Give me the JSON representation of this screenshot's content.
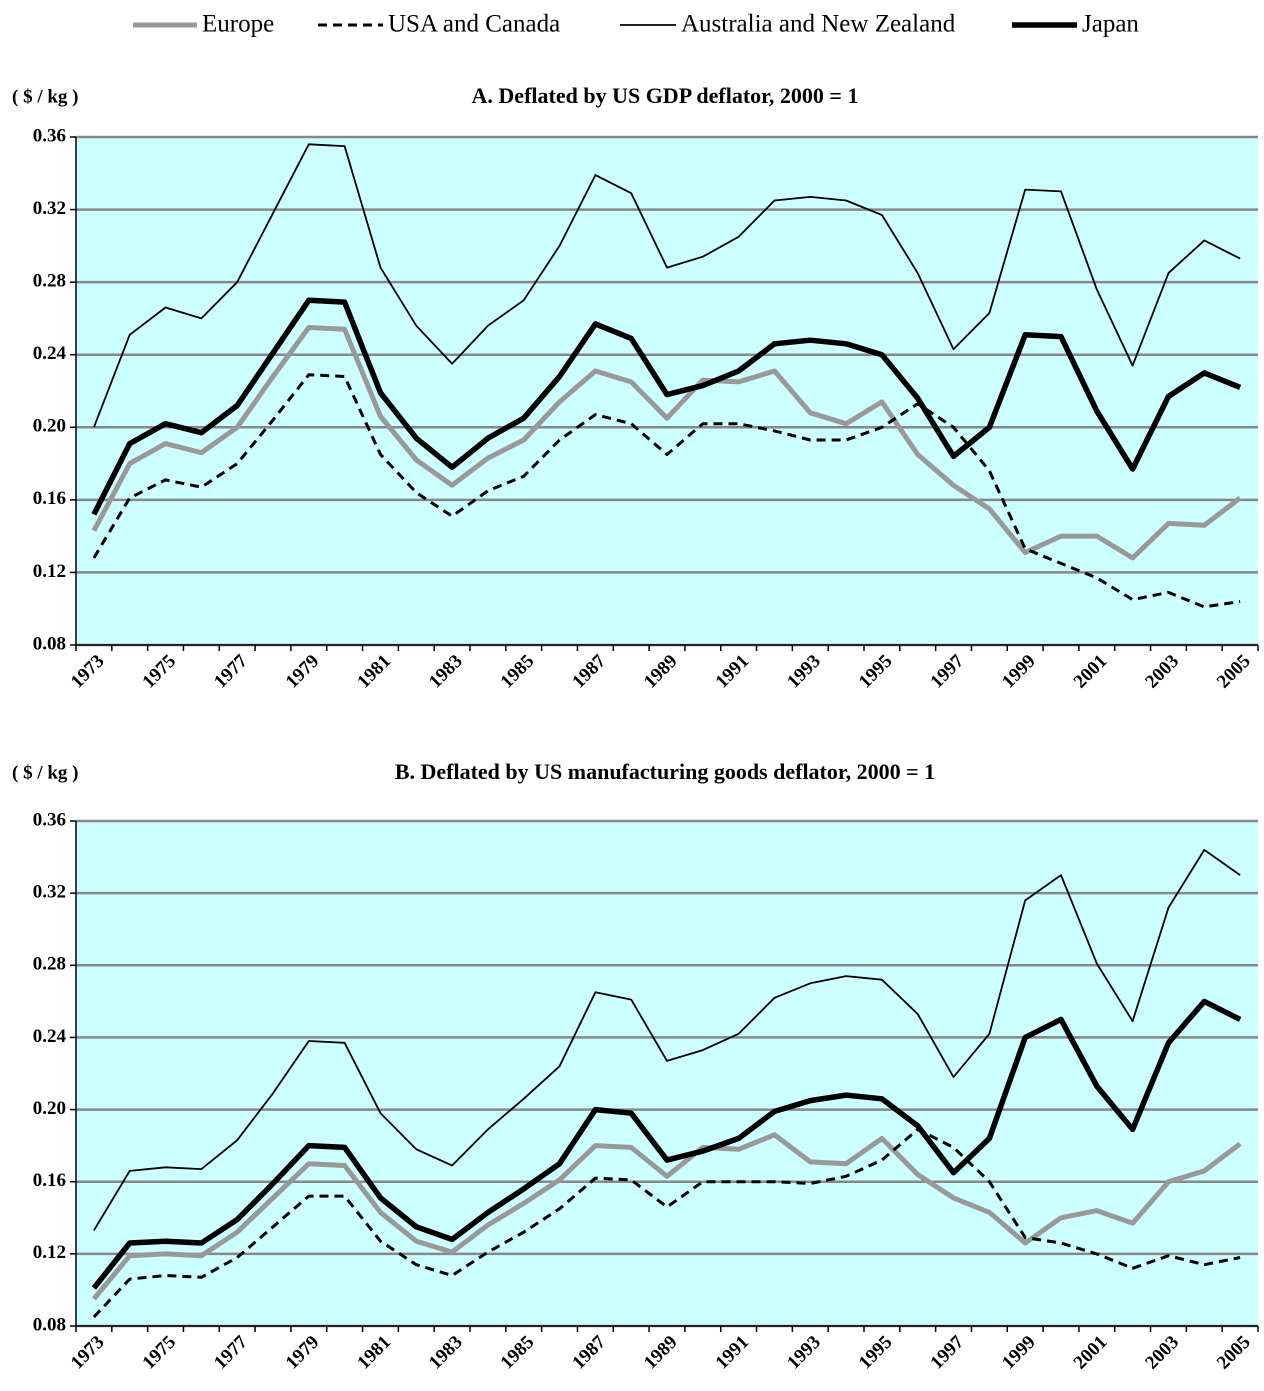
{
  "chart_data": [
    {
      "type": "line",
      "title": "A. Deflated by US GDP deflator, 2000 = 1",
      "ylabel": "( $ / kg )",
      "categories": [
        "1973",
        null,
        "1975",
        null,
        "1977",
        null,
        "1979",
        null,
        "1981",
        null,
        "1983",
        null,
        "1985",
        null,
        "1987",
        null,
        "1989",
        null,
        "1991",
        null,
        "1993",
        null,
        "1995",
        null,
        "1997",
        null,
        "1999",
        null,
        "2001",
        null,
        "2003",
        null,
        "2005"
      ],
      "ylim": [
        0.08,
        0.36
      ],
      "yticks": [
        0.08,
        0.12,
        0.16,
        {
          "value": 0.2,
          "label": "0.20"
        },
        0.24,
        0.28,
        0.32,
        0.36
      ],
      "grid": true,
      "background": "#ccffff",
      "series": [
        {
          "name": "Europe",
          "color": "#999999",
          "width": 5,
          "dash": "none",
          "values": [
            0.143,
            0.18,
            0.191,
            0.186,
            0.2,
            0.228,
            0.255,
            0.254,
            0.206,
            0.182,
            0.168,
            0.183,
            0.193,
            0.214,
            0.231,
            0.225,
            0.205,
            0.226,
            0.225,
            0.231,
            0.208,
            0.202,
            0.214,
            0.185,
            0.168,
            0.155,
            0.131,
            0.14,
            0.14,
            0.128,
            0.147,
            0.146,
            0.161
          ]
        },
        {
          "name": "USA and Canada",
          "color": "#000000",
          "width": 3,
          "dash": "9 6",
          "values": [
            0.128,
            0.161,
            0.171,
            0.167,
            0.18,
            0.204,
            0.229,
            0.228,
            0.185,
            0.164,
            0.151,
            0.165,
            0.173,
            0.193,
            0.207,
            0.202,
            0.185,
            0.202,
            0.202,
            0.198,
            0.193,
            0.193,
            0.2,
            0.213,
            0.2,
            0.176,
            0.133,
            0.125,
            0.117,
            0.105,
            0.109,
            0.101,
            0.104
          ]
        },
        {
          "name": "Australia and New Zealand",
          "color": "#000000",
          "width": 1.8,
          "dash": "none",
          "values": [
            0.2,
            0.251,
            0.266,
            0.26,
            0.28,
            0.318,
            0.356,
            0.355,
            0.288,
            0.256,
            0.235,
            0.256,
            0.27,
            0.3,
            0.339,
            0.329,
            0.288,
            0.294,
            0.305,
            0.325,
            0.327,
            0.325,
            0.317,
            0.285,
            0.243,
            0.263,
            0.331,
            0.33,
            0.276,
            0.234,
            0.285,
            0.303,
            0.293
          ]
        },
        {
          "name": "Japan",
          "color": "#000000",
          "width": 5.5,
          "dash": "none",
          "values": [
            0.152,
            0.191,
            0.202,
            0.197,
            0.212,
            0.241,
            0.27,
            0.269,
            0.219,
            0.194,
            0.178,
            0.194,
            0.205,
            0.228,
            0.257,
            0.249,
            0.218,
            0.223,
            0.231,
            0.246,
            0.248,
            0.246,
            0.24,
            0.216,
            0.184,
            0.2,
            0.251,
            0.25,
            0.209,
            0.177,
            0.217,
            0.23,
            0.222
          ]
        }
      ]
    },
    {
      "type": "line",
      "title": "B. Deflated by US manufacturing goods deflator, 2000 = 1",
      "ylabel": "( $ / kg )",
      "categories": [
        "1973",
        null,
        "1975",
        null,
        "1977",
        null,
        "1979",
        null,
        "1981",
        null,
        "1983",
        null,
        "1985",
        null,
        "1987",
        null,
        "1989",
        null,
        "1991",
        null,
        "1993",
        null,
        "1995",
        null,
        "1997",
        null,
        "1999",
        null,
        "2001",
        null,
        "2003",
        null,
        "2005"
      ],
      "ylim": [
        0.08,
        0.36
      ],
      "yticks": [
        0.08,
        0.12,
        0.16,
        {
          "value": 0.2,
          "label": "0.20"
        },
        0.24,
        0.28,
        0.32,
        0.36
      ],
      "grid": true,
      "background": "#ccffff",
      "series": [
        {
          "color": "#999999",
          "width": 5,
          "dash": "none",
          "values": [
            0.095,
            0.119,
            0.12,
            0.119,
            0.132,
            0.151,
            0.17,
            0.169,
            0.143,
            0.127,
            0.121,
            0.136,
            0.148,
            0.161,
            0.18,
            0.179,
            0.163,
            0.179,
            0.178,
            0.186,
            0.171,
            0.17,
            0.184,
            0.164,
            0.151,
            0.143,
            0.126,
            0.14,
            0.144,
            0.137,
            0.16,
            0.166,
            0.181
          ]
        },
        {
          "color": "#000000",
          "width": 3,
          "dash": "9 6",
          "values": [
            0.085,
            0.106,
            0.108,
            0.107,
            0.118,
            0.135,
            0.152,
            0.152,
            0.127,
            0.114,
            0.108,
            0.121,
            0.132,
            0.145,
            0.162,
            0.161,
            0.146,
            0.16,
            0.16,
            0.16,
            0.159,
            0.163,
            0.172,
            0.189,
            0.179,
            0.16,
            0.129,
            0.126,
            0.12,
            0.112,
            0.119,
            0.114,
            0.118
          ]
        },
        {
          "color": "#000000",
          "width": 1.8,
          "dash": "none",
          "values": [
            0.133,
            0.166,
            0.168,
            0.167,
            0.183,
            0.209,
            0.238,
            0.237,
            0.198,
            0.178,
            0.169,
            0.189,
            0.206,
            0.224,
            0.265,
            0.261,
            0.227,
            0.233,
            0.242,
            0.262,
            0.27,
            0.274,
            0.272,
            0.253,
            0.218,
            0.242,
            0.316,
            0.33,
            0.281,
            0.249,
            0.312,
            0.344,
            0.33
          ]
        },
        {
          "color": "#000000",
          "width": 5.5,
          "dash": "none",
          "values": [
            0.101,
            0.126,
            0.127,
            0.126,
            0.139,
            0.159,
            0.18,
            0.179,
            0.151,
            0.135,
            0.128,
            0.143,
            0.156,
            0.17,
            0.2,
            0.198,
            0.172,
            0.177,
            0.184,
            0.199,
            0.205,
            0.208,
            0.206,
            0.191,
            0.165,
            0.184,
            0.24,
            0.25,
            0.213,
            0.189,
            0.237,
            0.26,
            0.25
          ]
        }
      ]
    }
  ]
}
